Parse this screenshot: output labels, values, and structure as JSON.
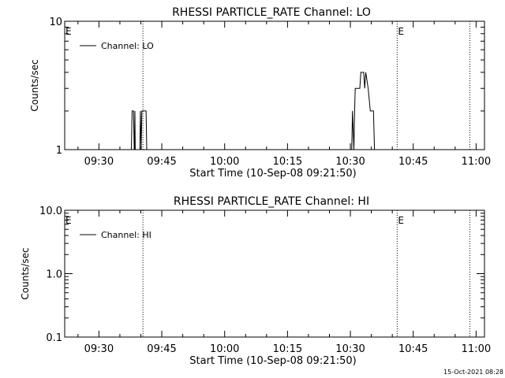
{
  "chart_data": [
    {
      "type": "line",
      "title": "RHESSI PARTICLE_RATE Channel: LO",
      "xlabel": "Start Time (10-Sep-08 09:21:50)",
      "ylabel": "Counts/sec",
      "yscale": "log",
      "ylim": [
        1,
        10
      ],
      "ytick_labels": [
        "1",
        "10"
      ],
      "xlim": [
        "09:21:50",
        "11:02:00"
      ],
      "xtick_labels": [
        "09:30",
        "09:45",
        "10:00",
        "10:15",
        "10:30",
        "10:45",
        "11:00"
      ],
      "grid": false,
      "legend": "top-left",
      "series": [
        {
          "name": "Channel: LO",
          "points": [
            [
              "09:37:45",
              1
            ],
            [
              "09:37:55",
              2
            ],
            [
              "09:38:15",
              2
            ],
            [
              "09:38:25",
              1
            ],
            [
              "09:38:30",
              1
            ],
            [
              "09:38:35",
              2
            ],
            [
              "09:38:40",
              1
            ],
            [
              "09:39:45",
              1
            ],
            [
              "09:39:55",
              2
            ],
            [
              "09:40:05",
              1
            ],
            [
              "09:40:15",
              2
            ],
            [
              "09:41:15",
              2
            ],
            [
              "09:41:25",
              1
            ],
            [
              "10:30:20",
              1
            ],
            [
              "10:30:30",
              2
            ],
            [
              "10:30:50",
              1
            ],
            [
              "10:31:00",
              2
            ],
            [
              "10:31:10",
              3
            ],
            [
              "10:32:15",
              3
            ],
            [
              "10:32:30",
              4
            ],
            [
              "10:33:10",
              4
            ],
            [
              "10:33:25",
              3
            ],
            [
              "10:33:40",
              4
            ],
            [
              "10:34:15",
              3
            ],
            [
              "10:34:45",
              2
            ],
            [
              "10:35:30",
              2
            ],
            [
              "10:35:45",
              1
            ]
          ]
        }
      ],
      "markers": [
        {
          "time": "09:21:50",
          "label": "E"
        },
        {
          "time": "09:40:30",
          "label": ""
        },
        {
          "time": "10:41:10",
          "label": "E"
        },
        {
          "time": "10:58:30",
          "label": ""
        }
      ]
    },
    {
      "type": "line",
      "title": "RHESSI PARTICLE_RATE Channel: HI",
      "xlabel": "Start Time (10-Sep-08 09:21:50)",
      "ylabel": "Counts/sec",
      "yscale": "log",
      "ylim": [
        0.1,
        10
      ],
      "ytick_labels": [
        "0.1",
        "1.0",
        "10.0"
      ],
      "xlim": [
        "09:21:50",
        "11:02:00"
      ],
      "xtick_labels": [
        "09:30",
        "09:45",
        "10:00",
        "10:15",
        "10:30",
        "10:45",
        "11:00"
      ],
      "grid": false,
      "legend": "top-left",
      "series": [
        {
          "name": "Channel: HI",
          "points": []
        }
      ],
      "markers": [
        {
          "time": "09:21:50",
          "label": "E"
        },
        {
          "time": "09:40:30",
          "label": ""
        },
        {
          "time": "10:41:10",
          "label": "E"
        },
        {
          "time": "10:58:30",
          "label": ""
        }
      ]
    }
  ],
  "footer": {
    "timestamp": "15-Oct-2021 08:28"
  }
}
